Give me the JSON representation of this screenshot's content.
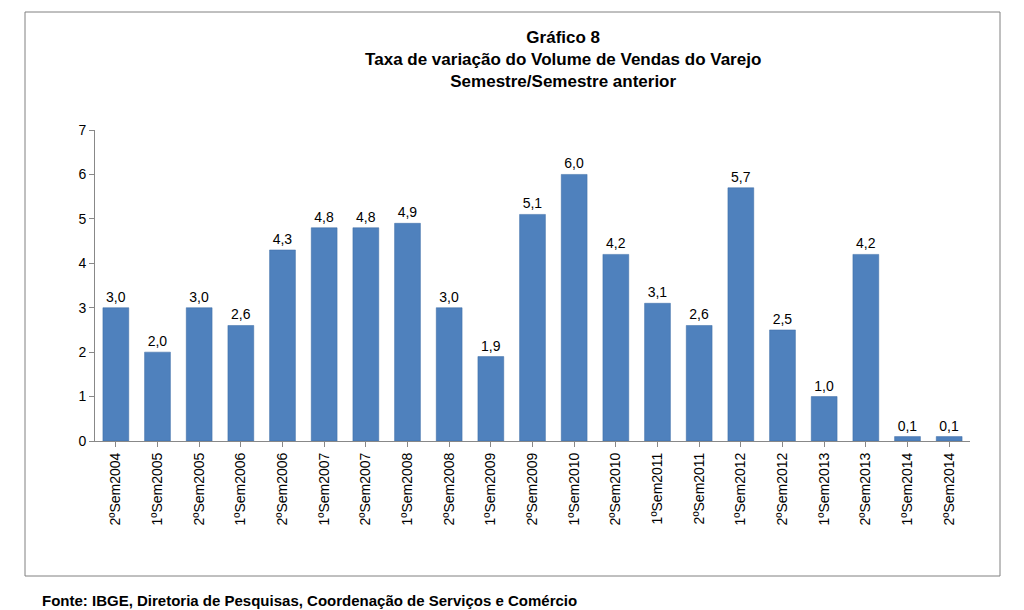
{
  "chart_data": {
    "type": "bar",
    "title": "Gráfico 8",
    "subtitle": [
      "Taxa de variação do Volume de Vendas do Varejo",
      "Semestre/Semestre anterior"
    ],
    "categories": [
      "2ºSem2004",
      "1ºSem2005",
      "2ºSem2005",
      "1ºSem2006",
      "2ºSem2006",
      "1ºSem2007",
      "2ºSem2007",
      "1ºSem2008",
      "2ºSem2008",
      "1ºSem2009",
      "2ºSem2009",
      "1ºSem2010",
      "2ºSem2010",
      "1ºSem2011",
      "2ºSem2011",
      "1ºSem2012",
      "2ºSem2012",
      "1ºSem2013",
      "2ºSem2013",
      "1ºSem2014",
      "2ºSem2014"
    ],
    "values": [
      3.0,
      2.0,
      3.0,
      2.6,
      4.3,
      4.8,
      4.8,
      4.9,
      3.0,
      1.9,
      5.1,
      6.0,
      4.2,
      3.1,
      2.6,
      5.7,
      2.5,
      1.0,
      4.2,
      0.1,
      0.1
    ],
    "value_labels": [
      "3,0",
      "2,0",
      "3,0",
      "2,6",
      "4,3",
      "4,8",
      "4,8",
      "4,9",
      "3,0",
      "1,9",
      "5,1",
      "6,0",
      "4,2",
      "3,1",
      "2,6",
      "5,7",
      "2,5",
      "1,0",
      "4,2",
      "0,1",
      "0,1"
    ],
    "data_labels": true,
    "color": "#4f81bd",
    "ylim": [
      0,
      7
    ],
    "yticks": [
      0,
      1,
      2,
      3,
      4,
      5,
      6,
      7
    ],
    "grid": false,
    "annotations": [
      "Fonte: IBGE, Diretoria de Pesquisas, Coordenação de Serviços e Comércio"
    ]
  }
}
